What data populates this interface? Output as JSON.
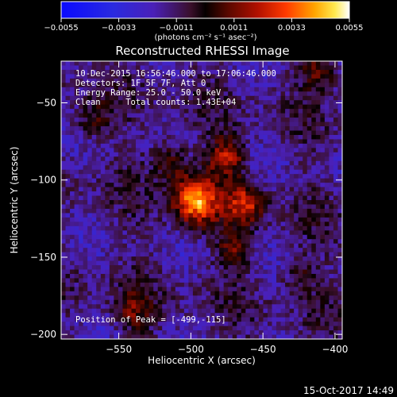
{
  "chart_data": {
    "type": "heatmap",
    "title": "Reconstructed RHESSI Image",
    "xlabel": "Heliocentric X (arcsec)",
    "ylabel": "Heliocentric Y (arcsec)",
    "xlim": [
      -590,
      -395
    ],
    "ylim": [
      -203,
      -23
    ],
    "x_ticks": [
      -550,
      -500,
      -450,
      -400
    ],
    "y_ticks": [
      -50,
      -100,
      -150,
      -200
    ],
    "x_tick_labels": [
      "−550",
      "−500",
      "−450",
      "−400"
    ],
    "y_tick_labels": [
      "−50",
      "−100",
      "−150",
      "−200"
    ],
    "colorbar": {
      "range": [
        -0.0055,
        0.0055
      ],
      "ticks": [
        -0.0055,
        -0.0033,
        -0.0011,
        0.0011,
        0.0033,
        0.0055
      ],
      "tick_labels": [
        "−0.0055",
        "−0.0033",
        "−0.0011",
        "0.0011",
        "0.0033",
        "0.0055"
      ],
      "unit_label": "(photons cm⁻² s⁻¹ asec⁻²)",
      "colormap": "blue-purple-red-yellow-white"
    },
    "annotations": [
      "10-Dec-2015 16:56:46.000 to 17:06:46.000",
      "Detectors: 1F 5F 7F, Att 0",
      "Energy Range: 25.0 - 50.0 keV",
      "Clean     Total counts: 1.43E+04"
    ],
    "peak_label": "Position of Peak = [-499,-115]",
    "peak_position": [
      -499,
      -115
    ],
    "sources": [
      {
        "x": -497,
        "y": -113,
        "peak": 0.0055,
        "note": "main bright core"
      },
      {
        "x": -462,
        "y": -115,
        "peak": 0.0035
      },
      {
        "x": -475,
        "y": -85,
        "peak": 0.0035
      },
      {
        "x": -515,
        "y": -87,
        "peak": 0.0024
      },
      {
        "x": -470,
        "y": -145,
        "peak": 0.0022
      },
      {
        "x": -568,
        "y": -62,
        "peak": 0.0018
      },
      {
        "x": -540,
        "y": -186,
        "peak": 0.002
      },
      {
        "x": -425,
        "y": -160,
        "peak": 0.0015
      },
      {
        "x": -410,
        "y": -30,
        "peak": 0.0025
      }
    ]
  },
  "footer": {
    "timestamp": "15-Oct-2017 14:49"
  }
}
